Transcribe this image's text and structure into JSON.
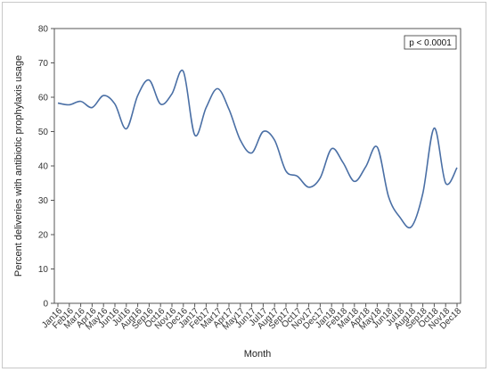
{
  "chart_data": {
    "type": "line",
    "xlabel": "Month",
    "ylabel": "Percent deliveries with antibiotic prophylaxis usage",
    "ylim": [
      0,
      80
    ],
    "yticks": [
      0,
      10,
      20,
      30,
      40,
      50,
      60,
      70,
      80
    ],
    "grid": false,
    "annotation": "p < 0.0001",
    "annotation_position": "top-right",
    "x": [
      "Jan16",
      "Feb16",
      "Mar16",
      "Apr16",
      "May16",
      "Jun16",
      "Jul16",
      "Aug16",
      "Sep16",
      "Oct16",
      "Nov16",
      "Dec16",
      "Jan17",
      "Feb17",
      "Mar17",
      "Apr17",
      "May17",
      "Jun17",
      "Jul17",
      "Aug17",
      "Sep17",
      "Oct17",
      "Nov17",
      "Dec17",
      "Jan18",
      "Feb18",
      "Mar18",
      "Apr18",
      "May18",
      "Jun18",
      "Jul18",
      "Aug18",
      "Sep18",
      "Oct18",
      "Nov18",
      "Dec18"
    ],
    "series": [
      {
        "color": "#4a6fa5",
        "values": [
          58.3,
          57.8,
          58.8,
          57.0,
          60.5,
          58.0,
          50.8,
          60.5,
          65.0,
          58.0,
          61.0,
          67.5,
          49.0,
          57.0,
          62.5,
          56.5,
          47.5,
          43.8,
          50.0,
          47.5,
          38.5,
          37.0,
          33.8,
          36.5,
          45.0,
          41.0,
          35.5,
          39.8,
          45.5,
          31.0,
          25.0,
          22.3,
          32.0,
          51.0,
          35.0,
          39.5
        ]
      }
    ]
  }
}
